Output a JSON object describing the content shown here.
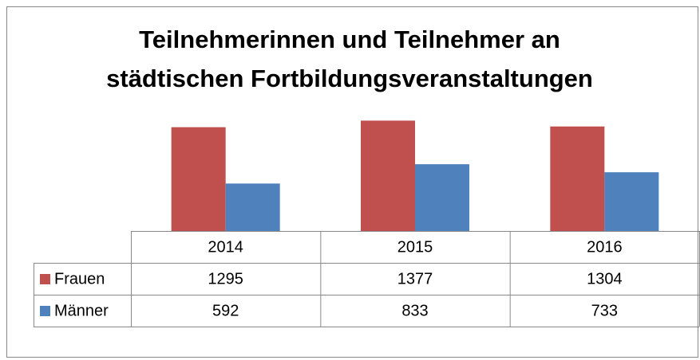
{
  "chart_data": {
    "type": "bar",
    "title": [
      "Teilnehmerinnen und Teilnehmer an",
      "städtischen Fortbildungsveranstaltungen"
    ],
    "categories": [
      "2014",
      "2015",
      "2016"
    ],
    "series": [
      {
        "name": "Frauen",
        "color": "#c0504d",
        "values": [
          1295,
          1377,
          1304
        ]
      },
      {
        "name": "Männer",
        "color": "#4f81bd",
        "values": [
          592,
          833,
          733
        ]
      }
    ],
    "ylim": [
      0,
      1600
    ]
  }
}
